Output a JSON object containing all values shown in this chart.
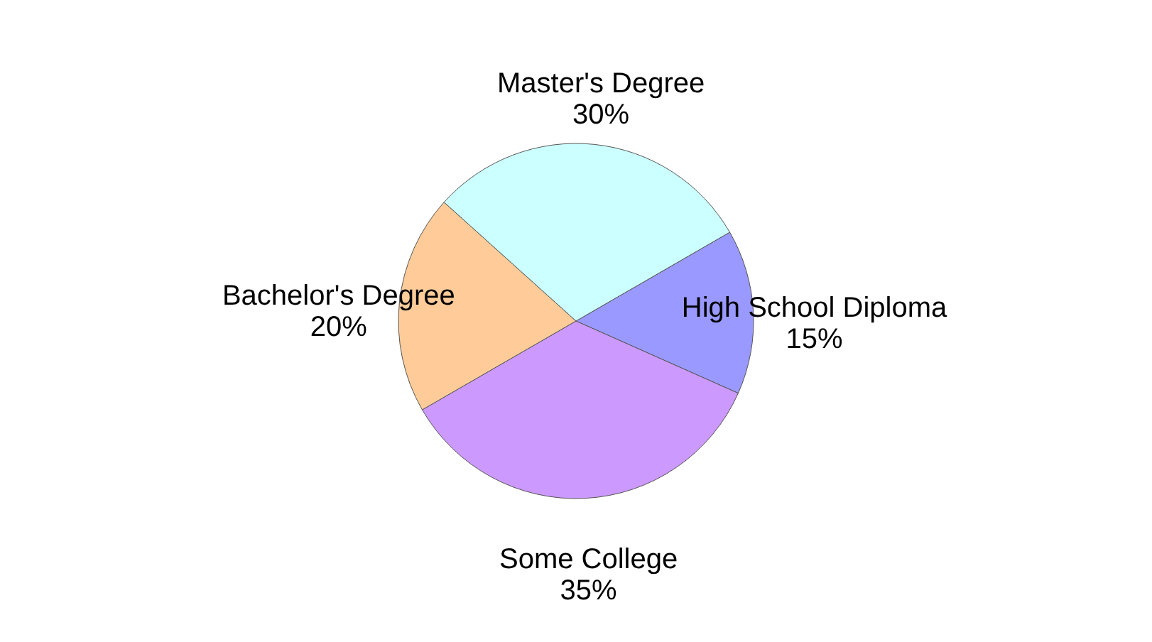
{
  "chart_data": {
    "type": "pie",
    "categories": [
      "High School Diploma",
      "Some College",
      "Bachelor's Degree",
      "Master's Degree"
    ],
    "values": [
      15,
      35,
      20,
      30
    ],
    "value_labels": [
      "15%",
      "35%",
      "20%",
      "30%"
    ],
    "colors": [
      "#9999ff",
      "#cc99ff",
      "#ffcc99",
      "#ccffff"
    ],
    "legend": false
  }
}
